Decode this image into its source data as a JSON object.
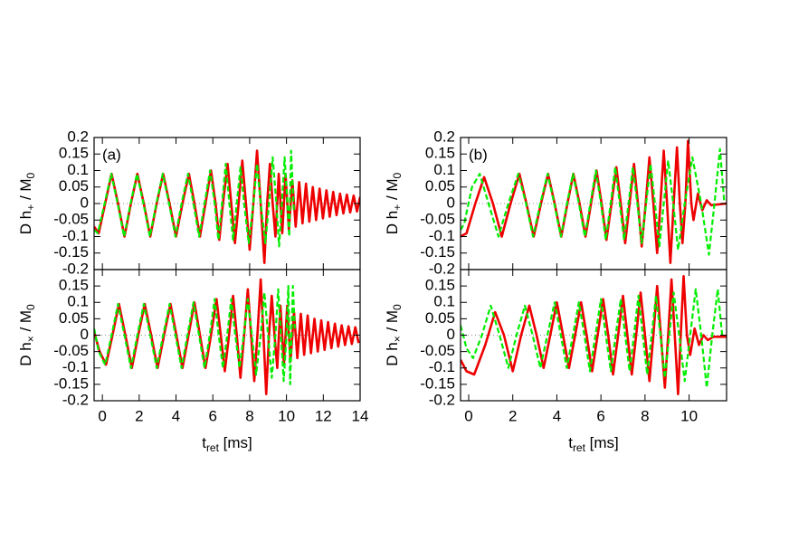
{
  "chart_data": [
    {
      "type": "line",
      "label": "(a)",
      "ylabel": [
        "D h",
        "+",
        " / M",
        "0"
      ],
      "show_xtick_labels": false,
      "zero_line": true,
      "xlim": [
        -0.45,
        14
      ],
      "xticks": [
        0,
        2,
        4,
        6,
        8,
        10,
        12,
        14
      ],
      "ylim": [
        -0.2,
        0.2
      ],
      "yticks": [
        -0.2,
        -0.15,
        -0.1,
        -0.05,
        0,
        0.05,
        0.1,
        0.15,
        0.2
      ],
      "series": [
        {
          "color": "#ee0000",
          "dashed": false,
          "x": [
            -0.45,
            -0.2,
            0.15,
            0.5,
            0.85,
            1.2,
            1.55,
            1.9,
            2.25,
            2.6,
            2.95,
            3.3,
            3.65,
            4.0,
            4.35,
            4.7,
            5.0,
            5.3,
            5.6,
            5.9,
            6.15,
            6.35,
            6.55,
            6.8,
            7.0,
            7.2,
            7.4,
            7.6,
            7.8,
            8.0,
            8.2,
            8.4,
            8.6,
            8.8,
            8.95,
            9.1,
            9.25,
            9.4,
            9.58,
            9.77,
            9.95,
            10.13,
            10.32,
            10.5,
            10.69,
            10.87,
            11.06,
            11.24,
            11.43,
            11.61,
            11.8,
            11.98,
            12.17,
            12.35,
            12.54,
            12.72,
            12.91,
            13.09,
            13.28,
            13.46,
            13.65,
            13.83,
            14.0
          ],
          "values": [
            -0.07,
            -0.09,
            0,
            0.09,
            0,
            -0.1,
            0,
            0.09,
            0,
            -0.1,
            0,
            0.09,
            0,
            -0.1,
            0,
            0.09,
            0,
            -0.1,
            0,
            0.1,
            0,
            -0.11,
            0,
            0.12,
            0,
            -0.12,
            0,
            0.13,
            0,
            -0.14,
            0,
            0.16,
            0,
            -0.18,
            0,
            0.12,
            0,
            -0.1,
            0.09,
            -0.09,
            0.09,
            -0.08,
            0.07,
            -0.07,
            0.065,
            -0.06,
            0.06,
            -0.055,
            0.05,
            -0.05,
            0.045,
            -0.045,
            0.04,
            -0.04,
            0.035,
            -0.035,
            0.03,
            -0.03,
            0.027,
            -0.027,
            0.024,
            -0.024,
            0.02
          ]
        },
        {
          "color": "#00ee00",
          "dashed": true,
          "x": [
            -0.45,
            -0.25,
            0.12,
            0.48,
            0.83,
            1.18,
            1.53,
            1.88,
            2.23,
            2.58,
            2.93,
            3.28,
            3.62,
            3.97,
            4.3,
            4.65,
            4.95,
            5.25,
            5.55,
            5.85,
            6.1,
            6.3,
            6.5,
            6.7,
            6.9,
            7.1,
            7.3,
            7.5,
            7.7,
            7.95,
            8.2,
            8.4,
            8.6,
            8.85,
            9.05,
            9.25,
            9.45,
            9.6,
            9.75,
            9.9,
            10.05,
            10.15,
            10.25,
            10.4
          ],
          "values": [
            -0.08,
            -0.09,
            0,
            0.09,
            0,
            -0.1,
            0,
            0.09,
            0,
            -0.1,
            0,
            0.09,
            0,
            -0.1,
            0,
            0.09,
            0,
            -0.1,
            0,
            0.1,
            0,
            -0.11,
            0,
            0.12,
            0,
            -0.11,
            0,
            0.11,
            0,
            -0.12,
            0,
            0.12,
            0,
            -0.12,
            0,
            0.14,
            0,
            -0.13,
            0,
            0.14,
            0,
            -0.1,
            0.16,
            -0.02
          ]
        }
      ]
    },
    {
      "type": "line",
      "xlabel": [
        "t",
        "ret",
        " [ms]"
      ],
      "ylabel": [
        "D h",
        "×",
        " / M",
        "0"
      ],
      "show_xtick_labels": true,
      "zero_line": true,
      "xlim": [
        -0.45,
        14
      ],
      "xticks": [
        0,
        2,
        4,
        6,
        8,
        10,
        12,
        14
      ],
      "ylim": [
        -0.2,
        0.2
      ],
      "yticks": [
        -0.2,
        -0.15,
        -0.1,
        -0.05,
        0,
        0.05,
        0.1,
        0.15
      ],
      "series": [
        {
          "color": "#ee0000",
          "dashed": false,
          "x": [
            -0.45,
            -0.15,
            0.2,
            0.55,
            0.9,
            1.25,
            1.6,
            1.95,
            2.3,
            2.65,
            3.0,
            3.35,
            3.7,
            4.02,
            4.35,
            4.68,
            5.0,
            5.3,
            5.6,
            5.9,
            6.2,
            6.43,
            6.65,
            6.88,
            7.1,
            7.3,
            7.5,
            7.7,
            7.9,
            8.08,
            8.25,
            8.42,
            8.6,
            8.75,
            8.9,
            9.05,
            9.2,
            9.35,
            9.5,
            9.67,
            9.86,
            10.04,
            10.22,
            10.41,
            10.59,
            10.78,
            10.96,
            11.15,
            11.33,
            11.52,
            11.7,
            11.89,
            12.07,
            12.26,
            12.44,
            12.63,
            12.81,
            13.0,
            13.18,
            13.37,
            13.55,
            13.74,
            13.92
          ],
          "values": [
            0.01,
            -0.05,
            -0.09,
            0,
            0.095,
            0,
            -0.1,
            0,
            0.095,
            0,
            -0.1,
            0,
            0.095,
            0,
            -0.1,
            0,
            0.1,
            0,
            -0.1,
            0,
            0.11,
            0,
            -0.11,
            0,
            0.12,
            0,
            -0.13,
            0,
            0.14,
            0,
            -0.14,
            0,
            0.17,
            0,
            -0.18,
            0,
            0.12,
            0,
            -0.1,
            0.09,
            -0.09,
            0.09,
            -0.08,
            0.07,
            -0.07,
            0.065,
            -0.06,
            0.06,
            -0.055,
            0.05,
            -0.05,
            0.045,
            -0.045,
            0.04,
            -0.04,
            0.035,
            -0.035,
            0.03,
            -0.03,
            0.027,
            -0.027,
            0.024,
            -0.024
          ]
        },
        {
          "color": "#00ee00",
          "dashed": true,
          "x": [
            -0.45,
            -0.2,
            0.15,
            0.5,
            0.85,
            1.2,
            1.55,
            1.9,
            2.25,
            2.6,
            2.95,
            3.3,
            3.65,
            3.97,
            4.3,
            4.62,
            4.95,
            5.25,
            5.55,
            5.83,
            6.1,
            6.32,
            6.55,
            6.78,
            7.0,
            7.22,
            7.45,
            7.68,
            7.9,
            8.12,
            8.35,
            8.6,
            8.8,
            9.0,
            9.2,
            9.4,
            9.55,
            9.7,
            9.85,
            10.0,
            10.1,
            10.2,
            10.35,
            10.45
          ],
          "values": [
            0.02,
            -0.05,
            -0.09,
            0,
            0.095,
            0,
            -0.1,
            0,
            0.095,
            0,
            -0.1,
            0,
            0.095,
            0,
            -0.1,
            0,
            0.1,
            0,
            -0.1,
            0,
            0.11,
            0,
            -0.1,
            0,
            0.11,
            0,
            -0.1,
            0,
            0.11,
            0,
            -0.12,
            0,
            0.13,
            0,
            -0.13,
            0,
            0.14,
            0,
            -0.14,
            0,
            0.15,
            -0.15,
            0.15,
            0.02
          ]
        }
      ]
    },
    {
      "type": "line",
      "label": "(b)",
      "ylabel": [
        "D h",
        "+",
        " / M",
        "0"
      ],
      "show_xtick_labels": false,
      "zero_line": true,
      "xlim": [
        -0.37,
        11.7
      ],
      "xticks": [
        0,
        2,
        4,
        6,
        8,
        10
      ],
      "ylim": [
        -0.2,
        0.2
      ],
      "yticks": [
        -0.2,
        -0.15,
        -0.1,
        -0.05,
        0,
        0.05,
        0.1,
        0.15,
        0.2
      ],
      "series": [
        {
          "color": "#ee0000",
          "dashed": false,
          "x": [
            -0.37,
            -0.1,
            0.3,
            0.7,
            1.1,
            1.5,
            1.9,
            2.3,
            2.62,
            2.95,
            3.28,
            3.6,
            3.9,
            4.2,
            4.48,
            4.75,
            5.03,
            5.3,
            5.55,
            5.8,
            6.03,
            6.25,
            6.48,
            6.7,
            6.9,
            7.1,
            7.3,
            7.5,
            7.68,
            7.85,
            8.03,
            8.2,
            8.38,
            8.55,
            8.7,
            8.85,
            9.0,
            9.15,
            9.3,
            9.45,
            9.58,
            9.7,
            9.83,
            9.95,
            10.1,
            10.2,
            10.4,
            10.6,
            10.8,
            11.0,
            11.7
          ],
          "values": [
            -0.1,
            -0.09,
            0,
            0.08,
            0,
            -0.1,
            0,
            0.09,
            0,
            -0.1,
            0,
            0.09,
            0,
            -0.1,
            0,
            0.09,
            0,
            -0.1,
            0,
            0.1,
            0,
            -0.11,
            0,
            0.11,
            0,
            -0.12,
            0,
            0.12,
            0,
            -0.13,
            0,
            0.14,
            0,
            -0.15,
            0,
            0.16,
            0,
            -0.18,
            0,
            0.17,
            0,
            -0.12,
            0,
            0.19,
            0,
            -0.05,
            0.03,
            -0.02,
            0.01,
            -0.005,
            0
          ]
        },
        {
          "color": "#00ee00",
          "dashed": true,
          "x": [
            -0.37,
            -0.2,
            0.15,
            0.5,
            0.9,
            1.35,
            1.8,
            2.25,
            2.6,
            2.92,
            3.25,
            3.58,
            3.88,
            4.18,
            4.46,
            4.73,
            5.0,
            5.27,
            5.52,
            5.77,
            6.0,
            6.22,
            6.44,
            6.65,
            6.85,
            7.05,
            7.25,
            7.45,
            7.65,
            7.85,
            8.05,
            8.25,
            8.45,
            8.65,
            8.85,
            9.05,
            9.28,
            9.5,
            9.8,
            10.15,
            10.55,
            10.9,
            11.15,
            11.4,
            11.6
          ],
          "values": [
            -0.08,
            -0.06,
            0.05,
            0.09,
            0,
            -0.1,
            0,
            0.09,
            0,
            -0.1,
            0,
            0.09,
            0,
            -0.1,
            0,
            0.09,
            0,
            -0.1,
            0,
            0.1,
            0,
            -0.11,
            0,
            0.11,
            0,
            -0.11,
            0,
            0.11,
            0,
            -0.12,
            0,
            0.12,
            0,
            -0.13,
            0,
            0.13,
            0,
            -0.14,
            0,
            0.14,
            0,
            -0.155,
            0,
            0.165,
            0
          ]
        }
      ]
    },
    {
      "type": "line",
      "xlabel": [
        "t",
        "ret",
        " [ms]"
      ],
      "ylabel": [
        "D h",
        "×",
        " / M",
        "0"
      ],
      "show_xtick_labels": true,
      "zero_line": true,
      "xlim": [
        -0.37,
        11.7
      ],
      "xticks": [
        0,
        2,
        4,
        6,
        8,
        10
      ],
      "ylim": [
        -0.2,
        0.2
      ],
      "yticks": [
        -0.2,
        -0.15,
        -0.1,
        -0.05,
        0,
        0.05,
        0.1,
        0.15
      ],
      "series": [
        {
          "color": "#ee0000",
          "dashed": false,
          "x": [
            -0.37,
            -0.1,
            0.25,
            0.75,
            1.2,
            1.6,
            2.0,
            2.38,
            2.75,
            3.08,
            3.4,
            3.7,
            4.0,
            4.28,
            4.55,
            4.83,
            5.1,
            5.35,
            5.6,
            5.85,
            6.1,
            6.33,
            6.55,
            6.78,
            7.0,
            7.2,
            7.4,
            7.6,
            7.8,
            8.0,
            8.2,
            8.38,
            8.55,
            8.72,
            8.9,
            9.05,
            9.2,
            9.35,
            9.5,
            9.62,
            9.75,
            9.9,
            10.05,
            10.25,
            10.45,
            10.65,
            10.85,
            11.1,
            11.7
          ],
          "values": [
            -0.075,
            -0.11,
            -0.12,
            -0.03,
            0.07,
            0,
            -0.11,
            0,
            0.09,
            0,
            -0.1,
            0,
            0.1,
            0,
            -0.1,
            0,
            0.1,
            0,
            -0.11,
            0,
            0.11,
            0,
            -0.12,
            0,
            0.12,
            0,
            -0.12,
            0,
            0.13,
            0,
            -0.14,
            0,
            0.15,
            0,
            -0.16,
            0,
            0.17,
            0,
            -0.18,
            0,
            0.18,
            0,
            -0.06,
            0.02,
            -0.03,
            0,
            -0.015,
            -0.005,
            -0.005
          ]
        },
        {
          "color": "#00ee00",
          "dashed": true,
          "x": [
            -0.37,
            -0.1,
            0.2,
            0.6,
            1.0,
            1.4,
            1.8,
            2.17,
            2.55,
            2.9,
            3.25,
            3.57,
            3.9,
            4.18,
            4.45,
            4.73,
            5.0,
            5.25,
            5.5,
            5.75,
            6.0,
            6.22,
            6.45,
            6.67,
            6.9,
            7.1,
            7.3,
            7.5,
            7.7,
            7.9,
            8.1,
            8.3,
            8.5,
            8.7,
            8.9,
            9.1,
            9.3,
            9.55,
            9.8,
            10.05,
            10.3,
            10.55,
            10.8,
            11.05,
            11.3,
            11.5
          ],
          "values": [
            0.03,
            -0.04,
            -0.07,
            0,
            0.09,
            0,
            -0.1,
            0,
            0.09,
            0,
            -0.1,
            0,
            0.1,
            0,
            -0.1,
            0,
            0.1,
            0,
            -0.11,
            0,
            0.11,
            0,
            -0.11,
            0,
            0.11,
            0,
            -0.11,
            0,
            0.12,
            0,
            -0.12,
            0,
            0.12,
            0,
            -0.13,
            0,
            0.13,
            0,
            -0.14,
            0,
            0.14,
            0,
            -0.16,
            0,
            0.14,
            0
          ]
        }
      ]
    }
  ]
}
